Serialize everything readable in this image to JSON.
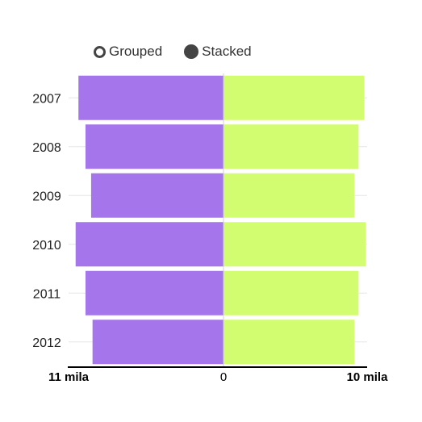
{
  "legend": {
    "grouped_label": "Grouped",
    "stacked_label": "Stacked",
    "selected": "Stacked"
  },
  "colors": {
    "left_series": "#a575ec",
    "right_series": "#d3fd70",
    "axis": "#000000",
    "grid": "#e6e6e6"
  },
  "chart_data": {
    "type": "bar",
    "orientation": "horizontal-diverging",
    "categories": [
      "2007",
      "2008",
      "2009",
      "2010",
      "2011",
      "2012"
    ],
    "series": [
      {
        "values": [
          10.3,
          9.8,
          9.4,
          10.5,
          9.8,
          9.3
        ]
      },
      {
        "values": [
          9.8,
          9.4,
          9.1,
          9.9,
          9.4,
          9.1
        ]
      }
    ],
    "x_axis": {
      "left_label": "11 mila",
      "center_label": "0",
      "right_label": "10 mila",
      "left_max": 11,
      "right_max": 10
    },
    "grid": true
  }
}
